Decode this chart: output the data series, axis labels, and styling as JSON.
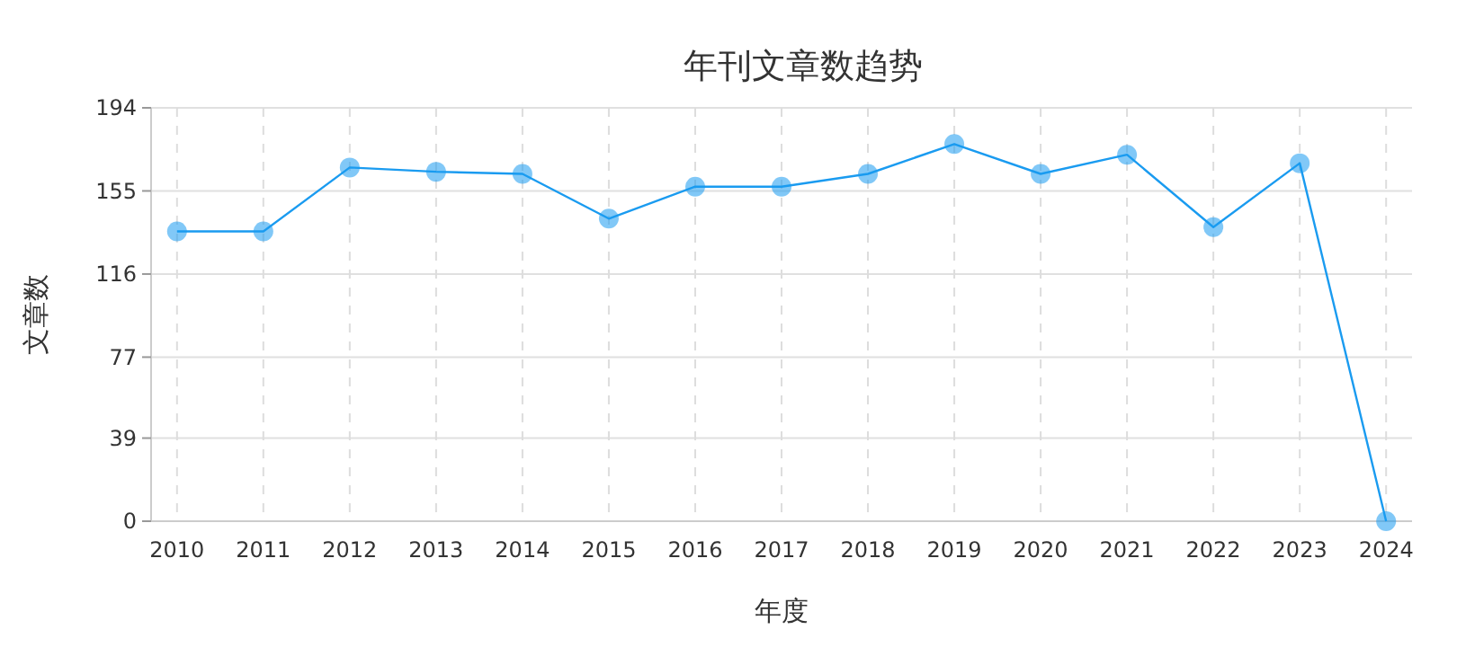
{
  "chart_data": {
    "type": "line",
    "title": "年刊文章数趋势",
    "xlabel": "年度",
    "ylabel": "文章数",
    "categories": [
      "2010",
      "2011",
      "2012",
      "2013",
      "2014",
      "2015",
      "2016",
      "2017",
      "2018",
      "2019",
      "2020",
      "2021",
      "2022",
      "2023",
      "2024"
    ],
    "series": [
      {
        "color": "#1a9bf0",
        "values": [
          136,
          136,
          166,
          164,
          163,
          142,
          157,
          157,
          163,
          177,
          163,
          172,
          138,
          168,
          0
        ]
      }
    ],
    "ylim": [
      0,
      194
    ],
    "yticks": [
      0,
      39,
      77,
      116,
      155,
      194
    ],
    "grid": true,
    "marker": "circle",
    "line_style": "solid"
  }
}
